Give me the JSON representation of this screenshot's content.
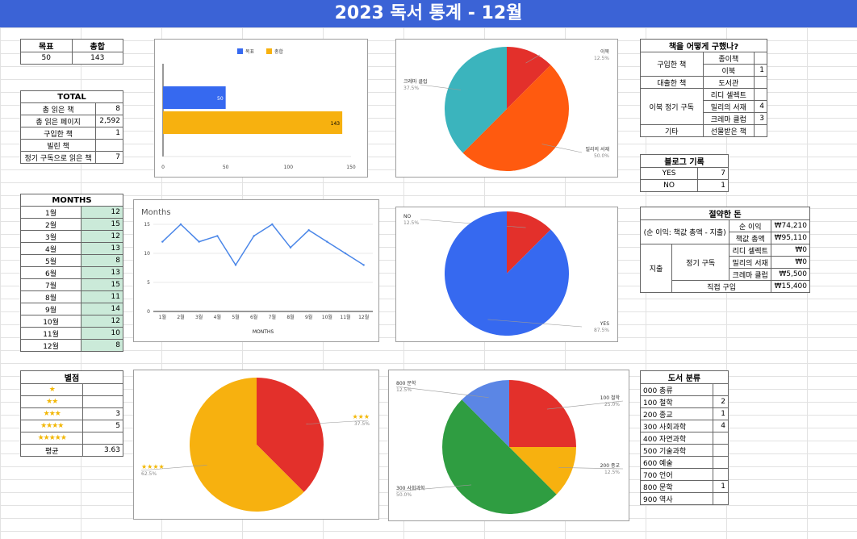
{
  "title": "2023 독서 통계 - 12월",
  "goal_table": {
    "h1": "목표",
    "h2": "총합",
    "goal": "50",
    "total": "143"
  },
  "total_table": {
    "header": "TOTAL",
    "rows": [
      {
        "label": "총 읽은 책",
        "value": "8"
      },
      {
        "label": "총 읽은 페이지",
        "value": "2,592"
      },
      {
        "label": "구입한 책",
        "value": "1"
      },
      {
        "label": "빌린 책",
        "value": ""
      },
      {
        "label": "정기 구독으로 읽은 책",
        "value": "7"
      }
    ]
  },
  "months_table": {
    "header": "MONTHS",
    "rows": [
      {
        "m": "1월",
        "v": "12"
      },
      {
        "m": "2월",
        "v": "15"
      },
      {
        "m": "3월",
        "v": "12"
      },
      {
        "m": "4월",
        "v": "13"
      },
      {
        "m": "5월",
        "v": "8"
      },
      {
        "m": "6월",
        "v": "13"
      },
      {
        "m": "7월",
        "v": "15"
      },
      {
        "m": "8월",
        "v": "11"
      },
      {
        "m": "9월",
        "v": "14"
      },
      {
        "m": "10월",
        "v": "12"
      },
      {
        "m": "11월",
        "v": "10"
      },
      {
        "m": "12월",
        "v": "8"
      }
    ]
  },
  "rating_table": {
    "header": "별점",
    "rows": [
      {
        "stars": 1,
        "value": ""
      },
      {
        "stars": 2,
        "value": ""
      },
      {
        "stars": 3,
        "value": "3"
      },
      {
        "stars": 4,
        "value": "5"
      },
      {
        "stars": 5,
        "value": ""
      }
    ],
    "avg_label": "평균",
    "avg_value": "3.63"
  },
  "acquire_table": {
    "header": "책을 어떻게 구했나?",
    "g_buy": "구입한 책",
    "buy_paper": "종이책",
    "buy_paper_v": "",
    "buy_ebook": "이북",
    "buy_ebook_v": "1",
    "g_lib": "대출한 책",
    "lib": "도서관",
    "lib_v": "",
    "g_sub": "이북 정기 구독",
    "sub_ridi": "리디 셀렉트",
    "sub_ridi_v": "",
    "sub_millie": "밀리의 서재",
    "sub_millie_v": "4",
    "sub_crema": "크레마 클럽",
    "sub_crema_v": "3",
    "g_etc": "기타",
    "etc": "선물받은 책",
    "etc_v": ""
  },
  "blog_table": {
    "header": "블로그 기록",
    "rows": [
      {
        "label": "YES",
        "value": "7"
      },
      {
        "label": "NO",
        "value": "1"
      }
    ]
  },
  "money_table": {
    "header": "절약한 돈",
    "net_desc": "(순 이익: 책값 총액 - 지출)",
    "net_label": "순 이익",
    "net_value": "₩74,210",
    "price_label": "책값 총액",
    "price_value": "₩95,110",
    "spend_label": "지출",
    "sub_label": "정기 구독",
    "ridi": "리디 셀렉트",
    "ridi_v": "₩0",
    "millie": "밀리의 서재",
    "millie_v": "₩0",
    "crema": "크레마 클럽",
    "crema_v": "₩5,500",
    "direct": "직접 구입",
    "direct_v": "₩15,400"
  },
  "class_table": {
    "header": "도서 분류",
    "rows": [
      {
        "label": "000 총류",
        "value": ""
      },
      {
        "label": "100 철학",
        "value": "2"
      },
      {
        "label": "200 종교",
        "value": "1"
      },
      {
        "label": "300 사회과학",
        "value": "4"
      },
      {
        "label": "400 자연과학",
        "value": ""
      },
      {
        "label": "500 기술과학",
        "value": ""
      },
      {
        "label": "600 예술",
        "value": ""
      },
      {
        "label": "700 언어",
        "value": ""
      },
      {
        "label": "800 문학",
        "value": "1"
      },
      {
        "label": "900 역사",
        "value": ""
      }
    ]
  },
  "colors": {
    "blue": "#3669f0",
    "yellow": "#f7b10f",
    "red": "#e3302b",
    "orange": "#ff5a0f",
    "teal": "#3bb4bd",
    "green": "#2f9d41",
    "lightblue": "#5b86e5",
    "banner": "#3b63d6",
    "line": "#4a86e8"
  },
  "chart_data": [
    {
      "type": "bar",
      "orientation": "horizontal",
      "series": [
        {
          "name": "목표",
          "values": [
            50
          ]
        },
        {
          "name": "총합",
          "values": [
            143
          ]
        }
      ],
      "value_labels": [
        "50",
        "143"
      ],
      "xlim": [
        0,
        150
      ],
      "xticks": [
        "0",
        "50",
        "100",
        "150"
      ],
      "legend": "top"
    },
    {
      "type": "pie",
      "slices": [
        {
          "label": "이북",
          "pct": "12.5%",
          "value": 12.5
        },
        {
          "label": "밀리의 서재",
          "pct": "50.0%",
          "value": 50.0
        },
        {
          "label": "크레마 클럽",
          "pct": "37.5%",
          "value": 37.5
        }
      ]
    },
    {
      "type": "line",
      "title": "Months",
      "xlabel": "MONTHS",
      "categories": [
        "1월",
        "2월",
        "3월",
        "4월",
        "5월",
        "6월",
        "7월",
        "8월",
        "9월",
        "10월",
        "11월",
        "12월"
      ],
      "values": [
        12,
        15,
        12,
        13,
        8,
        13,
        15,
        11,
        14,
        12,
        10,
        8
      ],
      "ylim": [
        0,
        15
      ],
      "yticks": [
        "0",
        "5",
        "10",
        "15"
      ],
      "grid": true
    },
    {
      "type": "pie",
      "slices": [
        {
          "label": "NO",
          "pct": "12.5%",
          "value": 12.5
        },
        {
          "label": "YES",
          "pct": "87.5%",
          "value": 87.5
        }
      ]
    },
    {
      "type": "pie",
      "slices": [
        {
          "label": "★★★",
          "pct": "37.5%",
          "value": 37.5
        },
        {
          "label": "★★★★",
          "pct": "62.5%",
          "value": 62.5
        }
      ]
    },
    {
      "type": "pie",
      "slices": [
        {
          "label": "100 철학",
          "pct": "25.0%",
          "value": 25.0
        },
        {
          "label": "200 종교",
          "pct": "12.5%",
          "value": 12.5
        },
        {
          "label": "300 사회과학",
          "pct": "50.0%",
          "value": 50.0
        },
        {
          "label": "800 문학",
          "pct": "12.5%",
          "value": 12.5
        }
      ]
    }
  ]
}
